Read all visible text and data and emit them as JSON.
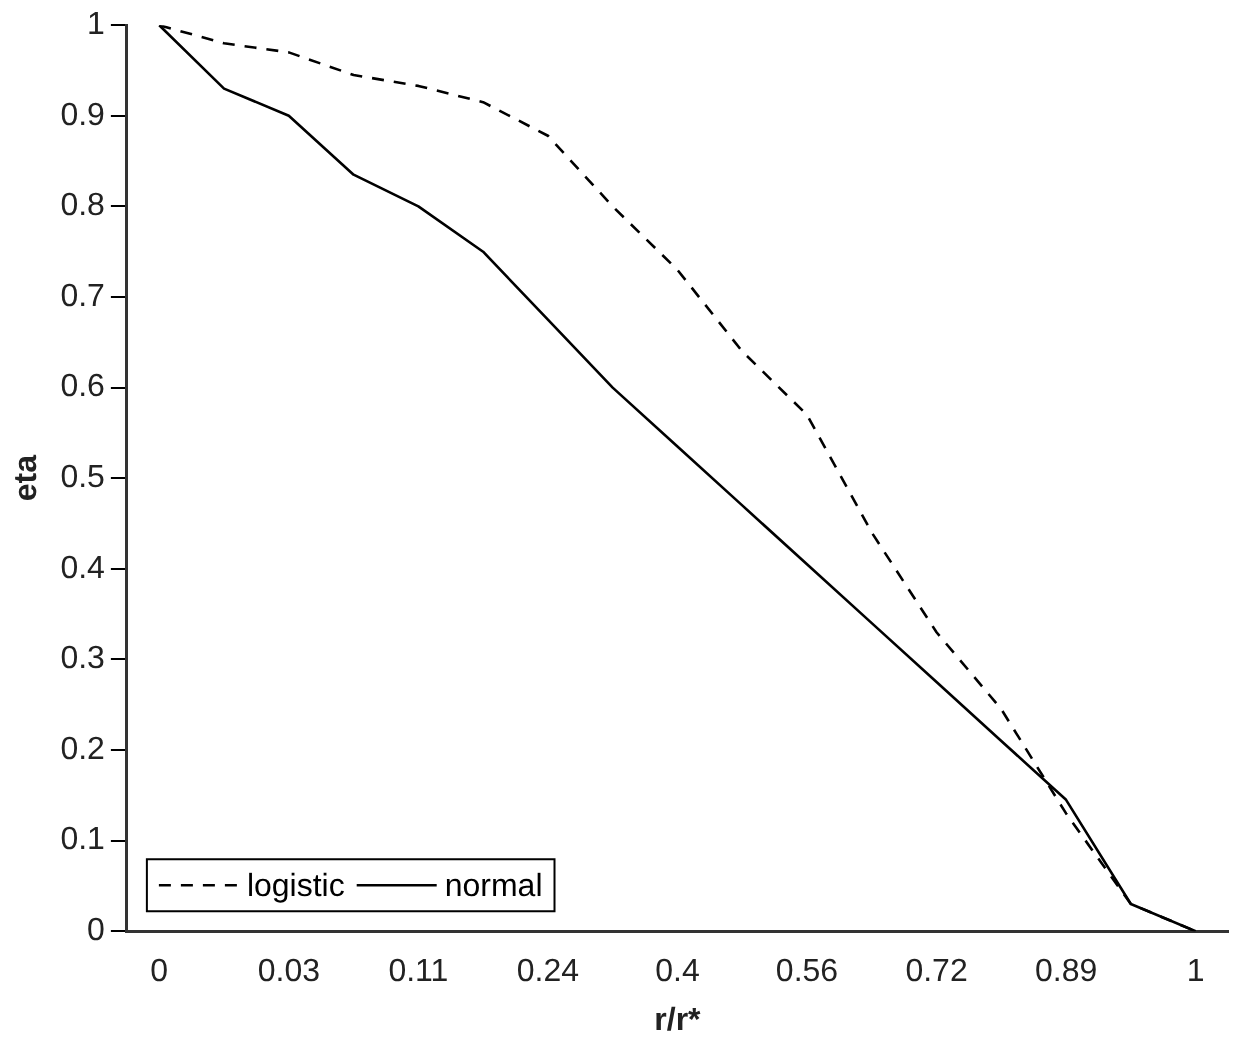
{
  "chart_data": {
    "type": "line",
    "xlabel": "r/r*",
    "ylabel": "eta",
    "categories": [
      "0",
      null,
      "0.03",
      null,
      "0.11",
      null,
      "0.24",
      null,
      "0.4",
      null,
      "0.56",
      null,
      "0.72",
      null,
      "0.89",
      null,
      "1"
    ],
    "series": [
      {
        "name": "logistic",
        "color": "#000000",
        "line_style": "dashed",
        "values": [
          1,
          0.98,
          0.97,
          0.945,
          0.933,
          0.915,
          0.878,
          0.8,
          0.73,
          0.64,
          0.57,
          0.44,
          0.33,
          0.245,
          0.13,
          0.03,
          0
        ]
      },
      {
        "name": "normal",
        "color": "#000000",
        "line_style": "solid",
        "values": [
          1,
          0.93,
          0.9,
          0.835,
          0.8,
          0.75,
          0.675,
          0.6,
          0.535,
          0.47,
          0.405,
          0.34,
          0.275,
          0.21,
          0.145,
          0.03,
          0
        ]
      }
    ],
    "ylim": [
      0,
      1
    ],
    "yticks": [
      0,
      0.1,
      0.2,
      0.3,
      0.4,
      0.5,
      0.6,
      0.7,
      0.8,
      0.9,
      1
    ],
    "grid": false,
    "legend": "bottom left",
    "marker": "none"
  }
}
